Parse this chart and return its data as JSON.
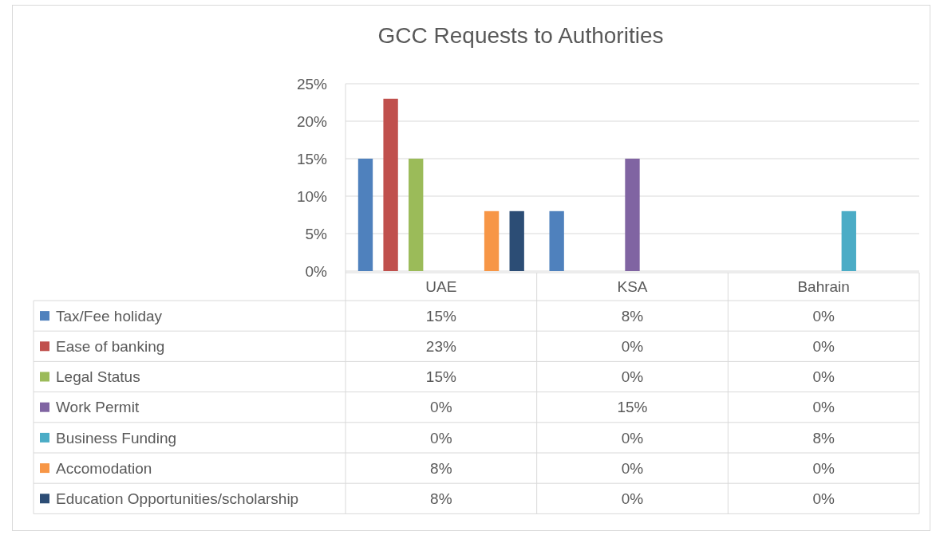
{
  "chart_data": {
    "type": "bar",
    "title": "GCC Requests to Authorities",
    "categories": [
      "UAE",
      "KSA",
      "Bahrain"
    ],
    "series": [
      {
        "name": "Tax/Fee holiday",
        "color": "#4f81bd",
        "values": [
          15,
          8,
          0
        ],
        "value_labels": [
          "15%",
          "8%",
          "0%"
        ]
      },
      {
        "name": "Ease of banking",
        "color": "#c0504d",
        "values": [
          23,
          0,
          0
        ],
        "value_labels": [
          "23%",
          "0%",
          "0%"
        ]
      },
      {
        "name": "Legal Status",
        "color": "#9bbb59",
        "values": [
          15,
          0,
          0
        ],
        "value_labels": [
          "15%",
          "0%",
          "0%"
        ]
      },
      {
        "name": "Work Permit",
        "color": "#8064a2",
        "values": [
          0,
          15,
          0
        ],
        "value_labels": [
          "0%",
          "15%",
          "0%"
        ]
      },
      {
        "name": "Business Funding",
        "color": "#4bacc6",
        "values": [
          0,
          0,
          8
        ],
        "value_labels": [
          "0%",
          "0%",
          "8%"
        ]
      },
      {
        "name": "Accomodation",
        "color": "#f79646",
        "values": [
          8,
          0,
          0
        ],
        "value_labels": [
          "8%",
          "0%",
          "0%"
        ]
      },
      {
        "name": "Education Opportunities/scholarship",
        "color": "#2c4d75",
        "values": [
          8,
          0,
          0
        ],
        "value_labels": [
          "8%",
          "0%",
          "0%"
        ]
      }
    ],
    "ylim": [
      0,
      25
    ],
    "yticks": [
      {
        "value": 0,
        "label": "0%"
      },
      {
        "value": 5,
        "label": "5%"
      },
      {
        "value": 10,
        "label": "10%"
      },
      {
        "value": 15,
        "label": "15%"
      },
      {
        "value": 20,
        "label": "20%"
      },
      {
        "value": 25,
        "label": "25%"
      }
    ],
    "grid": "y",
    "legend": "bottom"
  }
}
